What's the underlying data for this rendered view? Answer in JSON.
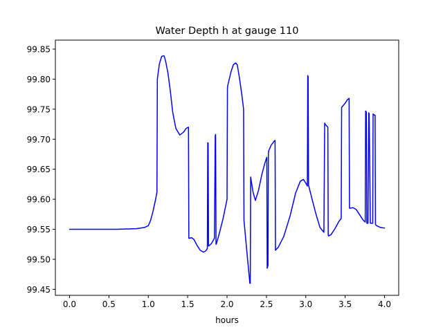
{
  "chart_data": {
    "type": "line",
    "title": "Water Depth h at gauge 110",
    "xlabel": "hours",
    "ylabel": "",
    "xlim": [
      -0.18,
      4.18
    ],
    "ylim": [
      99.44,
      99.865
    ],
    "xticks": [
      0.0,
      0.5,
      1.0,
      1.5,
      2.0,
      2.5,
      3.0,
      3.5,
      4.0
    ],
    "xtick_labels": [
      "0.0",
      "0.5",
      "1.0",
      "1.5",
      "2.0",
      "2.5",
      "3.0",
      "3.5",
      "4.0"
    ],
    "yticks": [
      99.45,
      99.5,
      99.55,
      99.6,
      99.65,
      99.7,
      99.75,
      99.8,
      99.85
    ],
    "ytick_labels": [
      "99.45",
      "99.50",
      "99.55",
      "99.60",
      "99.65",
      "99.70",
      "99.75",
      "99.80",
      "99.85"
    ],
    "grid": false,
    "legend": "none",
    "series": [
      {
        "color": "#0000ff",
        "x": [
          0.0,
          0.3,
          0.6,
          0.85,
          0.95,
          1.0,
          1.03,
          1.06,
          1.09,
          1.11,
          1.115,
          1.14,
          1.17,
          1.2,
          1.22,
          1.25,
          1.28,
          1.31,
          1.35,
          1.4,
          1.45,
          1.48,
          1.51,
          1.515,
          1.52,
          1.55,
          1.58,
          1.62,
          1.66,
          1.7,
          1.73,
          1.75,
          1.755,
          1.76,
          1.765,
          1.8,
          1.84,
          1.85,
          1.855,
          1.86,
          1.865,
          1.9,
          1.95,
          2.0,
          2.005,
          2.01,
          2.05,
          2.08,
          2.11,
          2.13,
          2.16,
          2.19,
          2.21,
          2.215,
          2.25,
          2.29,
          2.295,
          2.3,
          2.33,
          2.36,
          2.4,
          2.44,
          2.48,
          2.5,
          2.505,
          2.51,
          2.52,
          2.525,
          2.53,
          2.56,
          2.6,
          2.61,
          2.615,
          2.65,
          2.72,
          2.8,
          2.87,
          2.93,
          2.97,
          3.0,
          3.02,
          3.025,
          3.03,
          3.035,
          3.04,
          3.08,
          3.13,
          3.18,
          3.23,
          3.24,
          3.245,
          3.28,
          3.285,
          3.29,
          3.32,
          3.37,
          3.42,
          3.45,
          3.455,
          3.5,
          3.53,
          3.55,
          3.555,
          3.6,
          3.64,
          3.68,
          3.73,
          3.755,
          3.76,
          3.77,
          3.775,
          3.79,
          3.8,
          3.805,
          3.82,
          3.85,
          3.855,
          3.86,
          3.88,
          3.885,
          3.9,
          3.95,
          4.0
        ],
        "y": [
          99.55,
          99.55,
          99.55,
          99.551,
          99.553,
          99.556,
          99.565,
          99.58,
          99.598,
          99.612,
          99.8,
          99.825,
          99.838,
          99.839,
          99.83,
          99.81,
          99.78,
          99.745,
          99.718,
          99.707,
          99.712,
          99.718,
          99.72,
          99.535,
          99.535,
          99.536,
          99.533,
          99.523,
          99.515,
          99.512,
          99.514,
          99.518,
          99.694,
          99.694,
          99.522,
          99.526,
          99.535,
          99.706,
          99.708,
          99.525,
          99.526,
          99.542,
          99.568,
          99.6,
          99.785,
          99.79,
          99.812,
          99.824,
          99.827,
          99.824,
          99.8,
          99.772,
          99.75,
          99.565,
          99.515,
          99.46,
          99.46,
          99.637,
          99.612,
          99.598,
          99.615,
          99.64,
          99.66,
          99.668,
          99.67,
          99.485,
          99.49,
          99.676,
          99.681,
          99.69,
          99.697,
          99.698,
          99.515,
          99.52,
          99.538,
          99.572,
          99.61,
          99.63,
          99.633,
          99.627,
          99.622,
          99.806,
          99.804,
          99.623,
          99.621,
          99.6,
          99.575,
          99.553,
          99.545,
          99.727,
          99.725,
          99.72,
          99.54,
          99.539,
          99.541,
          99.551,
          99.563,
          99.568,
          99.753,
          99.76,
          99.766,
          99.768,
          99.585,
          99.586,
          99.583,
          99.575,
          99.565,
          99.562,
          99.747,
          99.745,
          99.56,
          99.56,
          99.744,
          99.742,
          99.56,
          99.56,
          99.742,
          99.741,
          99.74,
          99.558,
          99.556,
          99.553,
          99.552
        ]
      }
    ]
  }
}
